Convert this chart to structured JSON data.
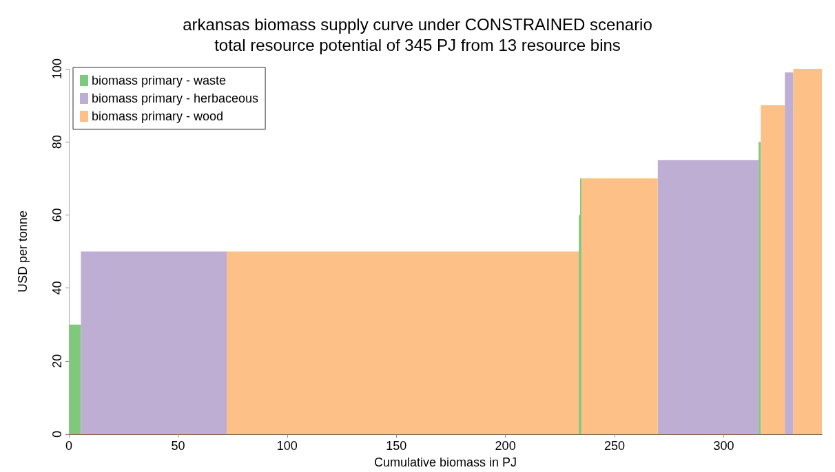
{
  "chart_data": {
    "type": "histogram",
    "title": "arkansas biomass supply curve under CONSTRAINED scenario",
    "subtitle": "total resource potential of 345 PJ from 13 resource bins",
    "xlabel": "Cumulative biomass in PJ",
    "ylabel": "USD per tonne",
    "bins": [
      0,
      5.5,
      72.3,
      233.6,
      234.2,
      234.8,
      269.8,
      316,
      317,
      328,
      331.9,
      345
    ],
    "series": [
      {
        "name": "biomass primary - waste",
        "color": "#7fc97f",
        "values": [
          30,
          null,
          null,
          60,
          70,
          null,
          null,
          80,
          null,
          null,
          null
        ]
      },
      {
        "name": "biomass primary - herbaceous",
        "color": "#beaed4",
        "values": [
          null,
          50,
          null,
          null,
          null,
          null,
          75,
          null,
          null,
          99,
          null
        ]
      },
      {
        "name": "biomass primary - wood",
        "color": "#fdc086",
        "values": [
          null,
          null,
          50,
          null,
          null,
          70,
          null,
          null,
          90,
          null,
          100
        ]
      }
    ],
    "xlim": [
      0,
      345
    ],
    "xticks": [
      0,
      50,
      100,
      150,
      200,
      250,
      300
    ],
    "ylim": [
      0,
      100
    ],
    "yticks": [
      0,
      20,
      40,
      60,
      80,
      100
    ],
    "grid": false,
    "legend": "top left"
  }
}
